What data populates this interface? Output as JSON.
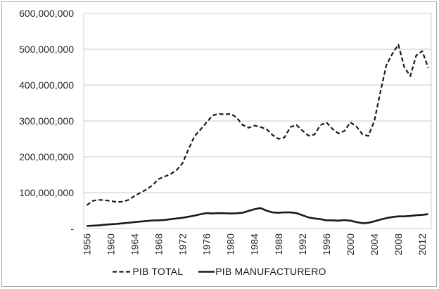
{
  "figure": {
    "background": "#ffffff",
    "border_color": "#a9a9a9",
    "plot_border_color": "#d0d0d0",
    "gridline_color": "#c8c8c8",
    "series_color": "#1a1a1a",
    "text_color": "#262626"
  },
  "chart_data": {
    "type": "line",
    "title": "",
    "xlabel": "",
    "ylabel": "",
    "grid": "horizontal",
    "legend_position": "bottom",
    "ylim": [
      0,
      600000000
    ],
    "y_ticks": [
      {
        "value": 600000000,
        "label": "600,000,000"
      },
      {
        "value": 500000000,
        "label": "500,000,000"
      },
      {
        "value": 400000000,
        "label": "400,000,000"
      },
      {
        "value": 300000000,
        "label": "300,000,000"
      },
      {
        "value": 200000000,
        "label": "200,000,000"
      },
      {
        "value": 100000000,
        "label": "100,000,000"
      },
      {
        "value": 0,
        "label": "-"
      }
    ],
    "x_tick_years": [
      1956,
      1960,
      1964,
      1968,
      1972,
      1976,
      1980,
      1984,
      1988,
      1992,
      1996,
      2000,
      2004,
      2008,
      2012
    ],
    "x": [
      1956,
      1957,
      1958,
      1959,
      1960,
      1961,
      1962,
      1963,
      1964,
      1965,
      1966,
      1967,
      1968,
      1969,
      1970,
      1971,
      1972,
      1973,
      1974,
      1975,
      1976,
      1977,
      1978,
      1979,
      1980,
      1981,
      1982,
      1983,
      1984,
      1985,
      1986,
      1987,
      1988,
      1989,
      1990,
      1991,
      1992,
      1993,
      1994,
      1995,
      1996,
      1997,
      1998,
      1999,
      2000,
      2001,
      2002,
      2003,
      2004,
      2005,
      2006,
      2007,
      2008,
      2009,
      2010,
      2011,
      2012,
      2013
    ],
    "series": [
      {
        "name": "PIB TOTAL",
        "style": "dashed",
        "values": [
          65000000,
          77000000,
          80000000,
          79000000,
          77000000,
          74000000,
          75000000,
          80000000,
          91000000,
          100000000,
          109000000,
          121000000,
          138000000,
          145000000,
          152000000,
          163000000,
          182000000,
          222000000,
          258000000,
          276000000,
          296000000,
          315000000,
          320000000,
          318000000,
          320000000,
          310000000,
          289000000,
          281000000,
          287000000,
          283000000,
          277000000,
          261000000,
          250000000,
          254000000,
          283000000,
          289000000,
          273000000,
          259000000,
          262000000,
          288000000,
          296000000,
          278000000,
          265000000,
          272000000,
          296000000,
          285000000,
          263000000,
          258000000,
          300000000,
          380000000,
          455000000,
          487000000,
          513000000,
          450000000,
          425000000,
          483000000,
          495000000,
          448000000
        ]
      },
      {
        "name": "PIB MANUFACTURERO",
        "style": "solid",
        "values": [
          7000000,
          8000000,
          9000000,
          10500000,
          12000000,
          13000000,
          14500000,
          16000000,
          18000000,
          19500000,
          21000000,
          22500000,
          23000000,
          24000000,
          26000000,
          28000000,
          30000000,
          33000000,
          36000000,
          40000000,
          43000000,
          42000000,
          43000000,
          42500000,
          42000000,
          42500000,
          44000000,
          49000000,
          54000000,
          57000000,
          50000000,
          45000000,
          44000000,
          45000000,
          45000000,
          43000000,
          37000000,
          31000000,
          28000000,
          26000000,
          23000000,
          23000000,
          22000000,
          23500000,
          22000000,
          18000000,
          15000000,
          16000000,
          20000000,
          25000000,
          29000000,
          32000000,
          34000000,
          34000000,
          35000000,
          37000000,
          38000000,
          40000000
        ]
      }
    ]
  }
}
